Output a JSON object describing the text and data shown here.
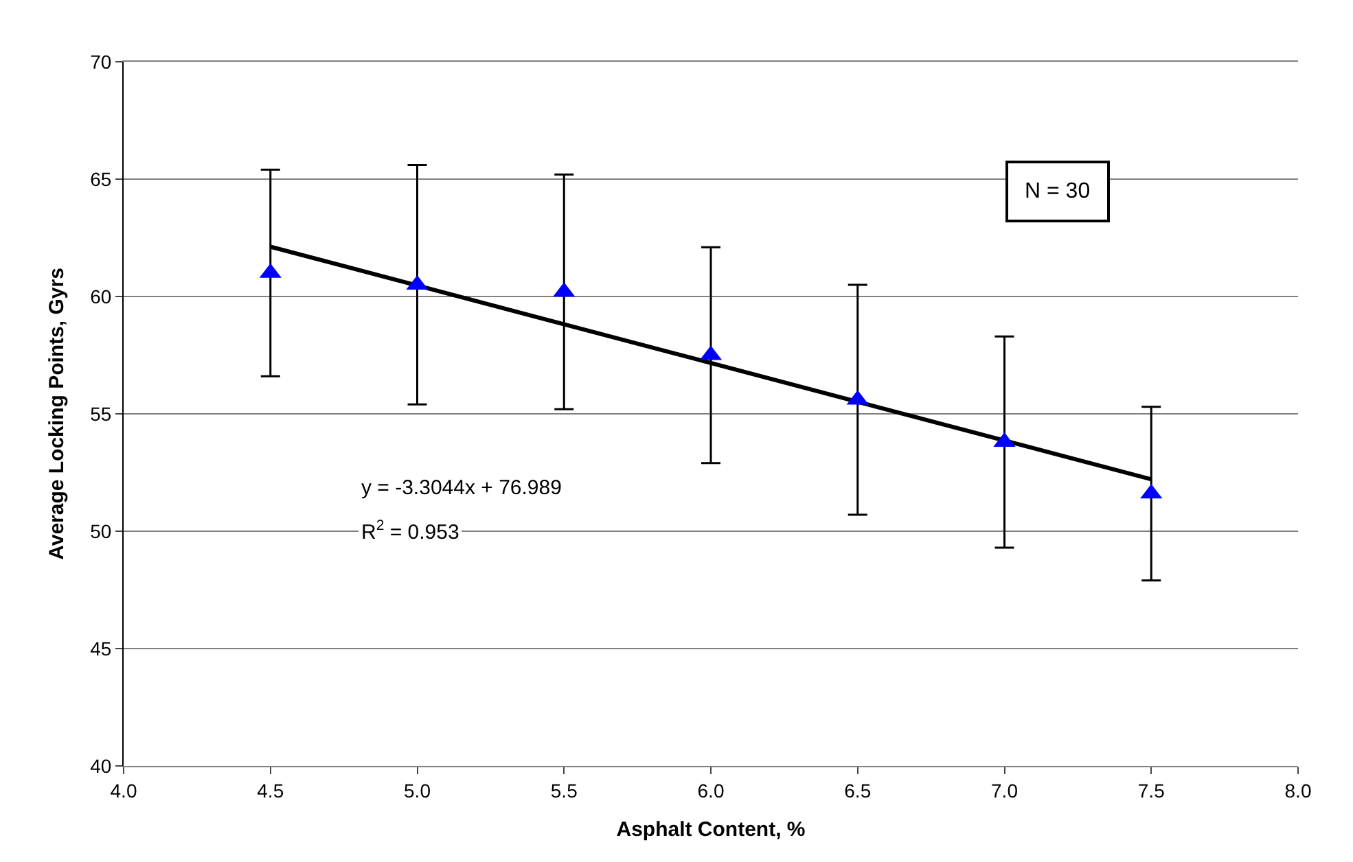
{
  "chart_data": {
    "type": "scatter",
    "xlabel": "Asphalt Content, %",
    "ylabel": "Average Locking Points, Gyrs",
    "xlim": [
      4.0,
      8.0
    ],
    "xticks": [
      {
        "value": 4,
        "label": "4.0"
      },
      {
        "value": 4.5,
        "label": "4.5"
      },
      {
        "value": 5,
        "label": "5.0"
      },
      {
        "value": 5.5,
        "label": "5.5"
      },
      {
        "value": 6,
        "label": "6.0"
      },
      {
        "value": 6.5,
        "label": "6.5"
      },
      {
        "value": 7,
        "label": "7.0"
      },
      {
        "value": 7.5,
        "label": "7.5"
      },
      {
        "value": 8,
        "label": "8.0"
      }
    ],
    "ylim": [
      40,
      70
    ],
    "yticks": [
      40,
      45,
      50,
      55,
      60,
      65,
      70
    ],
    "grid": "y",
    "series": [
      {
        "marker": "triangle",
        "color": "#0000ff",
        "x": [
          4.5,
          5.0,
          5.5,
          6.0,
          6.5,
          7.0,
          7.5
        ],
        "values": [
          61.0,
          60.5,
          60.2,
          57.5,
          55.6,
          53.8,
          51.6
        ],
        "errors": [
          4.4,
          5.1,
          5.0,
          4.6,
          4.9,
          4.5,
          3.7
        ]
      },
      {
        "type": "line",
        "marker": "none",
        "color": "#000000",
        "x": [
          4.5,
          7.5
        ],
        "values": [
          62.12,
          52.21
        ]
      }
    ],
    "annotations": [
      "y = -3.3044x + 76.989",
      "R$^{2}$ = 0.953",
      "N = 30"
    ]
  }
}
